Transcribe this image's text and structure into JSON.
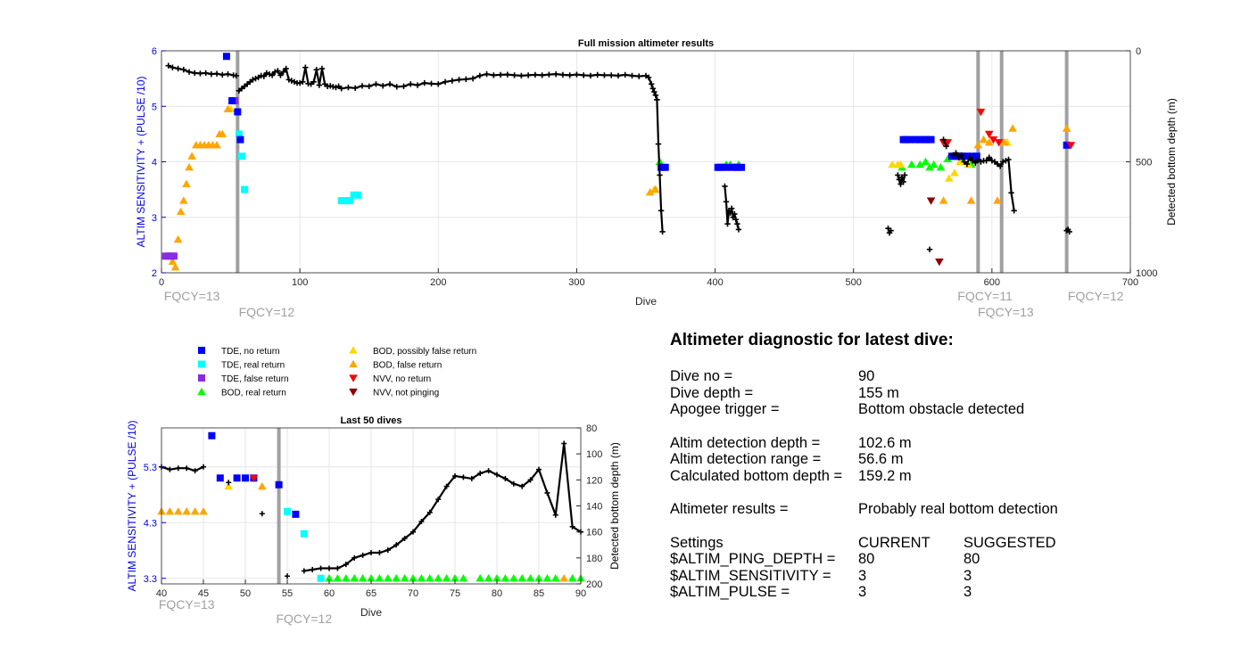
{
  "colors": {
    "left_axis": "#0000e6",
    "fqcy_line": "#a0a0a0",
    "depth_line": "#000000",
    "tde_no_return": "#0000ff",
    "tde_real_return": "#00ffff",
    "tde_false_return": "#8a2be2",
    "bod_real_return": "#00ff00",
    "bod_possibly_false_return": "#ffd700",
    "bod_false_return": "#ffa500",
    "nvv_no_return": "#ff0000",
    "nvv_not_pinging": "#8b0000"
  },
  "legend": [
    {
      "key": "tde_no_return",
      "label": "TDE, no return",
      "shape": "square"
    },
    {
      "key": "tde_real_return",
      "label": "TDE, real return",
      "shape": "square"
    },
    {
      "key": "tde_false_return",
      "label": "TDE, false return",
      "shape": "square"
    },
    {
      "key": "bod_real_return",
      "label": "BOD, real return",
      "shape": "triangle-up"
    },
    {
      "key": "bod_possibly_false_return",
      "label": "BOD, possibly false return",
      "shape": "triangle-up"
    },
    {
      "key": "bod_false_return",
      "label": "BOD, false return",
      "shape": "triangle-up"
    },
    {
      "key": "nvv_no_return",
      "label": "NVV, no return",
      "shape": "triangle-down"
    },
    {
      "key": "nvv_not_pinging",
      "label": "NVV, not pinging",
      "shape": "triangle-down"
    }
  ],
  "chart_data": [
    {
      "type": "scatter",
      "title": "Full mission altimeter results",
      "xlabel": "Dive",
      "ylabel": "ALTIM SENSITIVITY + (PULSE /10)",
      "y2label": "Detected bottom depth (m)",
      "xlim": [
        0,
        700
      ],
      "ylim": [
        2,
        6
      ],
      "y2lim": [
        0,
        1000
      ],
      "y2reversed": true,
      "xticks": [
        0,
        100,
        200,
        300,
        400,
        500,
        600,
        700
      ],
      "yticks": [
        2,
        3,
        4,
        5,
        6
      ],
      "y2ticks": [
        0,
        500,
        1000
      ],
      "grid": true,
      "fqcy_changes": [
        {
          "dive": 55,
          "label": "FQCY=13",
          "label_dive": 22,
          "row": 1
        },
        {
          "dive": 55,
          "label": "FQCY=12",
          "label_dive": 76,
          "row": 2
        },
        {
          "dive": 590,
          "label": "FQCY=11",
          "label_dive": 595,
          "row": 1
        },
        {
          "dive": 607,
          "label": "FQCY=13",
          "label_dive": 610,
          "row": 2
        },
        {
          "dive": 654,
          "label": "FQCY=12",
          "label_dive": 675,
          "row": 1
        }
      ],
      "depth_series": [
        {
          "x": [
            5,
            8,
            12,
            16,
            20,
            24,
            28,
            32,
            36,
            40,
            44,
            48,
            52,
            54
          ],
          "y": [
            67,
            75,
            80,
            85,
            95,
            100,
            102,
            100,
            105,
            103,
            108,
            105,
            110,
            112
          ]
        },
        {
          "x": [
            56,
            58,
            60,
            62,
            64,
            66,
            68,
            70,
            72,
            74,
            76,
            78,
            80,
            82,
            84,
            86,
            88,
            90,
            92,
            94,
            96,
            98,
            100,
            102,
            104,
            106,
            108,
            110,
            112,
            114,
            116,
            118,
            120,
            122,
            124,
            126,
            128,
            130,
            135,
            140,
            145,
            150,
            155,
            160,
            165,
            170,
            175,
            180,
            185,
            190,
            195,
            200,
            205,
            210,
            215,
            220,
            225,
            230,
            235,
            240,
            245,
            250,
            255,
            260,
            265,
            270,
            275,
            280,
            285,
            290,
            295,
            300,
            305,
            310,
            315,
            320,
            325,
            330,
            335,
            340,
            345,
            350,
            352,
            354,
            355,
            356,
            357,
            358
          ],
          "y": [
            180,
            170,
            160,
            150,
            140,
            130,
            125,
            120,
            112,
            115,
            100,
            105,
            110,
            95,
            90,
            110,
            95,
            80,
            130,
            135,
            140,
            145,
            145,
            140,
            75,
            148,
            150,
            140,
            85,
            155,
            80,
            150,
            160,
            158,
            162,
            165,
            160,
            170,
            165,
            168,
            158,
            160,
            150,
            158,
            150,
            162,
            160,
            150,
            155,
            145,
            148,
            150,
            140,
            135,
            130,
            128,
            125,
            112,
            105,
            110,
            108,
            107,
            110,
            112,
            110,
            108,
            110,
            107,
            105,
            108,
            110,
            107,
            110,
            112,
            108,
            110,
            110,
            112,
            108,
            112,
            115,
            112,
            120,
            150,
            170,
            185,
            200,
            220
          ]
        },
        {
          "x": [
            358,
            359,
            360,
            361,
            362
          ],
          "y": [
            220,
            420,
            560,
            720,
            815
          ]
        },
        {
          "x": [
            407,
            408,
            409,
            410,
            411,
            412,
            413,
            414,
            415,
            416,
            417
          ],
          "y": [
            610,
            680,
            780,
            720,
            730,
            710,
            750,
            735,
            760,
            780,
            805
          ]
        },
        {
          "x": [
            525,
            526,
            527
          ],
          "y": [
            800,
            820,
            810
          ]
        },
        {
          "x": [
            532,
            533,
            534,
            535,
            536,
            537
          ],
          "y": [
            560,
            580,
            600,
            570,
            590,
            560
          ]
        },
        {
          "x": [
            555
          ],
          "y": [
            895
          ]
        },
        {
          "x": [
            565,
            567
          ],
          "y": [
            400,
            430
          ]
        },
        {
          "x": [
            572,
            574,
            576,
            578,
            580,
            582,
            584,
            586,
            588,
            590,
            592,
            594,
            596,
            598,
            600,
            602,
            604,
            606,
            608,
            610,
            612,
            614,
            616
          ],
          "y": [
            470,
            460,
            480,
            470,
            500,
            510,
            480,
            495,
            505,
            490,
            500,
            495,
            495,
            480,
            495,
            500,
            510,
            520,
            500,
            495,
            490,
            640,
            720
          ]
        },
        {
          "x": [
            654,
            655,
            656
          ],
          "y": [
            810,
            805,
            815
          ]
        }
      ],
      "markers": {
        "tde_no_return": {
          "x": [
            47,
            51,
            55,
            57,
            536,
            538,
            541,
            545,
            548,
            551,
            553,
            556,
            571,
            573,
            575,
            577,
            579,
            582,
            586,
            589,
            654,
            402,
            404,
            408,
            413,
            416,
            419,
            361,
            364
          ],
          "y": [
            5.9,
            5.1,
            4.9,
            4.4,
            4.4,
            4.4,
            4.4,
            4.4,
            4.4,
            4.4,
            4.4,
            4.4,
            4.1,
            4.1,
            4.1,
            4.1,
            4.1,
            4.1,
            4.1,
            4.1,
            4.3,
            3.9,
            3.9,
            3.9,
            3.9,
            3.9,
            3.9,
            3.9,
            3.9
          ]
        },
        "tde_real_return": {
          "x": [
            56,
            58,
            60,
            130,
            133,
            136,
            139,
            142
          ],
          "y": [
            4.5,
            4.1,
            3.5,
            3.3,
            3.3,
            3.3,
            3.4,
            3.4
          ]
        },
        "tde_false_return": {
          "x": [
            3,
            5,
            7,
            9,
            51,
            53
          ],
          "y": [
            2.3,
            2.3,
            2.3,
            2.3,
            5.1,
            5.1
          ]
        },
        "bod_real_return": {
          "x": [
            360,
            405,
            408,
            411,
            414,
            417,
            535,
            542,
            548,
            552,
            555,
            558,
            563,
            568,
            572,
            578,
            585
          ],
          "y": [
            4.0,
            3.9,
            3.95,
            3.95,
            3.9,
            3.95,
            3.9,
            3.95,
            3.95,
            4.0,
            3.9,
            3.95,
            3.9,
            4.05,
            4.1,
            4.0,
            3.95
          ]
        },
        "bod_possibly_false_return": {
          "x": [
            50,
            356,
            528,
            532,
            534,
            569,
            573,
            577,
            583,
            611
          ],
          "y": [
            4.95,
            3.5,
            3.95,
            3.95,
            3.95,
            3.7,
            3.8,
            4.0,
            3.95,
            4.35
          ]
        },
        "bod_false_return": {
          "x": [
            8,
            10,
            12,
            14,
            16,
            18,
            20,
            22,
            25,
            28,
            31,
            34,
            37,
            40,
            42,
            44,
            48,
            353,
            357,
            565,
            585,
            590,
            594,
            598,
            604,
            609,
            615,
            654
          ],
          "y": [
            2.2,
            2.1,
            2.6,
            3.1,
            3.3,
            3.6,
            3.9,
            4.1,
            4.3,
            4.3,
            4.3,
            4.3,
            4.3,
            4.3,
            4.5,
            4.5,
            4.95,
            3.45,
            3.5,
            3.3,
            3.3,
            4.3,
            4.4,
            4.35,
            3.3,
            4.35,
            4.6,
            4.6
          ]
        },
        "nvv_no_return": {
          "x": [
            565,
            568,
            592,
            598,
            601,
            605,
            657
          ],
          "y": [
            4.35,
            4.35,
            4.9,
            4.5,
            4.4,
            4.35,
            4.3
          ]
        },
        "nvv_not_pinging": {
          "x": [
            556,
            562
          ],
          "y": [
            3.3,
            2.2
          ]
        }
      }
    },
    {
      "type": "scatter",
      "title": "Last 50 dives",
      "xlabel": "Dive",
      "ylabel": "ALTIM SENSITIVITY + (PULSE /10)",
      "y2label": "Detected bottom depth (m)",
      "xlim": [
        40,
        90
      ],
      "ylim": [
        3.2,
        6.0
      ],
      "y2lim": [
        80,
        200
      ],
      "y2reversed": true,
      "xticks": [
        40,
        45,
        50,
        55,
        60,
        65,
        70,
        75,
        80,
        85,
        90
      ],
      "yticks": [
        3.3,
        4.3,
        5.3
      ],
      "y2ticks": [
        80,
        100,
        120,
        140,
        160,
        180,
        200
      ],
      "grid": true,
      "fqcy_changes": [
        {
          "dive": 54,
          "label": "FQCY=13",
          "label_dive": 43,
          "row": 1
        },
        {
          "dive": 54,
          "label": "FQCY=12",
          "label_dive": 57,
          "row": 2
        }
      ],
      "depth_series": [
        {
          "x": [
            40,
            41,
            42,
            43,
            44,
            45
          ],
          "y": [
            110,
            112,
            111,
            111,
            113,
            110
          ]
        },
        {
          "x": [
            48
          ],
          "y": [
            122
          ]
        },
        {
          "x": [
            52
          ],
          "y": [
            146
          ]
        },
        {
          "x": [
            55
          ],
          "y": [
            194
          ]
        },
        {
          "x": [
            57,
            58,
            59,
            60,
            61,
            62,
            63,
            64,
            65,
            66,
            67,
            68,
            69,
            70,
            71,
            72,
            73,
            74,
            75,
            76,
            77,
            78,
            79,
            80,
            81,
            82,
            83,
            84,
            85,
            86,
            87,
            88,
            89,
            90
          ],
          "y": [
            190,
            189,
            188,
            188,
            188,
            185,
            180,
            178,
            176,
            176,
            174,
            170,
            165,
            160,
            152,
            145,
            135,
            125,
            117,
            118,
            119,
            115,
            113,
            116,
            119,
            123,
            125,
            120,
            112,
            130,
            147,
            92,
            156,
            160
          ]
        }
      ],
      "markers": {
        "tde_no_return": {
          "x": [
            46,
            47,
            49,
            50,
            51,
            54,
            56
          ],
          "y": [
            5.86,
            5.1,
            5.1,
            5.1,
            5.1,
            4.98,
            4.45
          ]
        },
        "tde_real_return": {
          "x": [
            55,
            57,
            59
          ],
          "y": [
            4.5,
            4.1,
            3.3
          ]
        },
        "tde_false_return": {
          "x": [],
          "y": []
        },
        "bod_real_return": {
          "x": [
            60,
            61,
            62,
            63,
            64,
            65,
            66,
            67,
            68,
            69,
            70,
            71,
            72,
            73,
            74,
            75,
            76,
            78,
            79,
            80,
            81,
            82,
            83,
            84,
            85,
            86,
            87,
            89,
            90
          ],
          "y": [
            3.3,
            3.3,
            3.3,
            3.3,
            3.3,
            3.3,
            3.3,
            3.3,
            3.3,
            3.3,
            3.3,
            3.3,
            3.3,
            3.3,
            3.3,
            3.3,
            3.3,
            3.3,
            3.3,
            3.3,
            3.3,
            3.3,
            3.3,
            3.3,
            3.3,
            3.3,
            3.3,
            3.3,
            3.3
          ]
        },
        "bod_possibly_false_return": {
          "x": [
            48
          ],
          "y": [
            4.95
          ]
        },
        "bod_false_return": {
          "x": [
            40,
            41,
            42,
            43,
            44,
            45,
            52,
            88
          ],
          "y": [
            4.5,
            4.5,
            4.5,
            4.5,
            4.5,
            4.5,
            4.95,
            3.3
          ]
        },
        "nvv_no_return": {
          "x": [
            51
          ],
          "y": [
            5.1
          ]
        },
        "nvv_not_pinging": {
          "x": [],
          "y": []
        }
      }
    }
  ],
  "diagnostic": {
    "title": "Altimeter diagnostic for latest dive:",
    "rows1": [
      {
        "k": "Dive no =",
        "v": "90"
      },
      {
        "k": "Dive depth =",
        "v": "155 m"
      },
      {
        "k": "Apogee trigger =",
        "v": "Bottom obstacle detected"
      }
    ],
    "rows2": [
      {
        "k": "Altim detection depth =",
        "v": "102.6 m"
      },
      {
        "k": "Altim detection range =",
        "v": "56.6 m"
      },
      {
        "k": "Calculated bottom depth =",
        "v": "159.2 m"
      }
    ],
    "rows3": [
      {
        "k": "Altimeter results =",
        "v": "Probably real bottom detection"
      }
    ],
    "settings_header": {
      "k": "Settings",
      "current": "CURRENT",
      "suggested": "SUGGESTED"
    },
    "settings": [
      {
        "k": "$ALTIM_PING_DEPTH =",
        "current": "80",
        "suggested": "80"
      },
      {
        "k": "$ALTIM_SENSITIVITY =",
        "current": "3",
        "suggested": "3"
      },
      {
        "k": "$ALTIM_PULSE =",
        "current": "3",
        "suggested": "3"
      }
    ]
  }
}
